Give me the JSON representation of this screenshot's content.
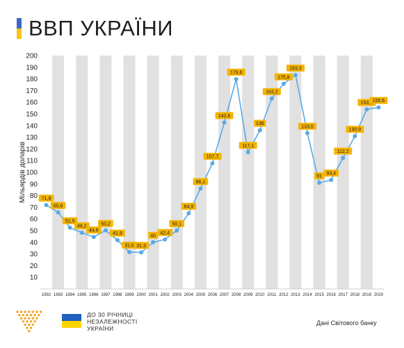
{
  "title": "ВВП УКРАЇНИ",
  "footer": {
    "anniversary_lines": [
      "ДО 30 РІЧНИЦІ",
      "НЕЗАЛЕЖНОСТІ",
      "УКРАЇНИ"
    ],
    "source": "Дані Світового банку"
  },
  "colors": {
    "line": "#5aa9e6",
    "label_bg": "#f5b400",
    "band": "#e1e1e1",
    "flag_blue": "#3a68c9",
    "flag_yellow": "#f5c518",
    "logo": "#f5a623"
  },
  "icons": {
    "logo": "dotted-triangle-logo-icon",
    "flag": "ukraine-flag-icon"
  },
  "chart_data": {
    "type": "line",
    "ylabel": "Мільярдів доларів",
    "xlabel": "",
    "ylim": [
      0,
      200
    ],
    "yticks": [
      10,
      20,
      30,
      40,
      50,
      60,
      70,
      80,
      90,
      100,
      110,
      120,
      130,
      140,
      150,
      160,
      170,
      180,
      190,
      200
    ],
    "grid": "alternating vertical bands",
    "x": [
      "1992",
      "1993",
      "1994",
      "1995",
      "1996",
      "1997",
      "1998",
      "1999",
      "2000",
      "2001",
      "2002",
      "2003",
      "2004",
      "2005",
      "2006",
      "2007",
      "2008",
      "2009",
      "2010",
      "2011",
      "2012",
      "2013",
      "2014",
      "2015",
      "2016",
      "2017",
      "2018",
      "2019",
      "2020"
    ],
    "values": [
      71.9,
      65.6,
      52.5,
      48.2,
      44.6,
      50.2,
      41.9,
      31.6,
      31.3,
      40,
      42.4,
      50.1,
      64.9,
      86.1,
      107.7,
      142.6,
      179.8,
      117.1,
      136,
      163.2,
      175.8,
      183.3,
      133.5,
      91,
      93.4,
      112.2,
      130.9,
      153.9,
      155.6
    ],
    "data_labels": [
      "71,9",
      "65,6",
      "52,5",
      "48,2",
      "44,6",
      "50,2",
      "41,9",
      "31,6",
      "31,3",
      "40",
      "42,4",
      "50,1",
      "64,9",
      "86,1",
      "107,7",
      "142,6",
      "179,8",
      "117,1",
      "136",
      "163,2",
      "175,8",
      "183,3",
      "133,5",
      "91",
      "93,4",
      "112,2",
      "130,9",
      "153,9",
      "155,6"
    ]
  }
}
